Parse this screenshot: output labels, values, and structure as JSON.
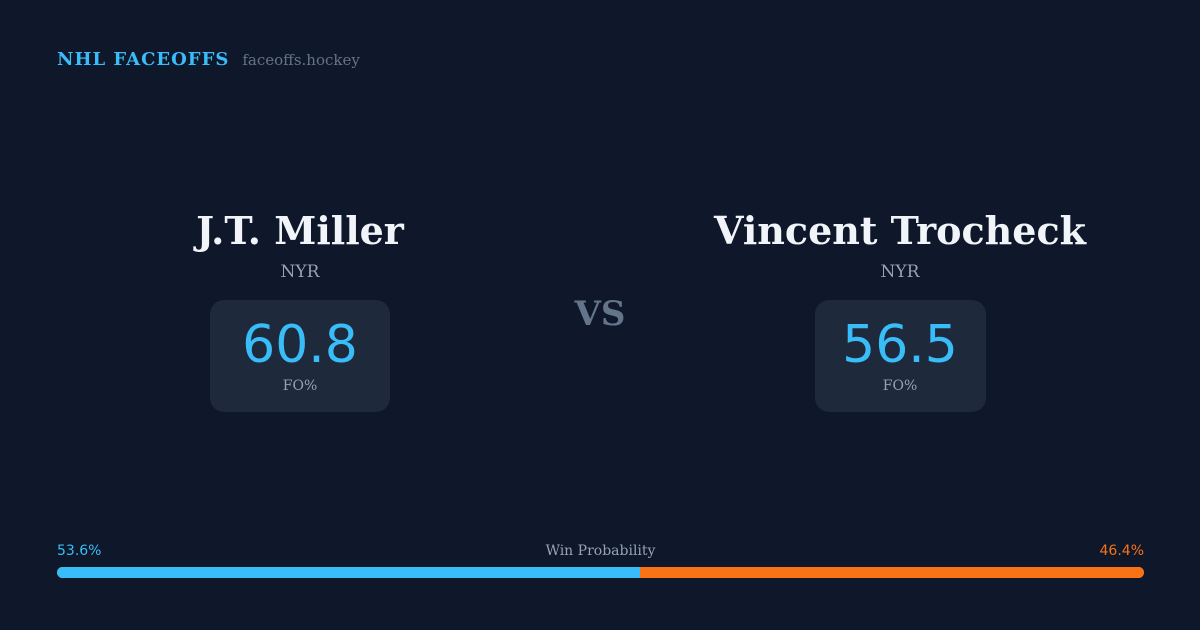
{
  "brand": {
    "name": "NHL FACEOFFS",
    "url": "faceoffs.hockey"
  },
  "players": [
    {
      "name": "J.T. Miller",
      "team": "NYR",
      "fo_pct": "60.8",
      "fo_label": "FO%"
    },
    {
      "name": "Vincent Trocheck",
      "team": "NYR",
      "fo_pct": "56.5",
      "fo_label": "FO%"
    }
  ],
  "vs": "VS",
  "win_probability": {
    "label": "Win Probability",
    "left": "53.6%",
    "right": "46.4%",
    "left_value": 53.6,
    "right_value": 46.4,
    "colors": {
      "left": "#38bdf8",
      "right": "#f97316"
    }
  }
}
